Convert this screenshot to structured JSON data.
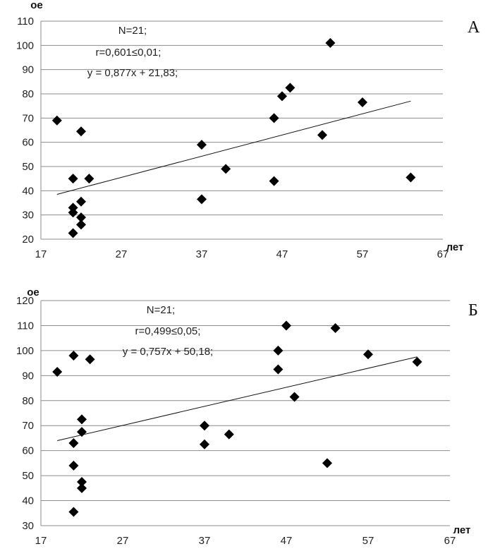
{
  "chart_data": [
    {
      "type": "scatter",
      "panel_label": "А",
      "ylabel": "ое",
      "xlabel": "лет",
      "xlim": [
        17,
        67
      ],
      "ylim": [
        20,
        110
      ],
      "xticks": [
        17,
        27,
        37,
        47,
        57,
        67
      ],
      "yticks": [
        20,
        30,
        40,
        50,
        60,
        70,
        80,
        90,
        100,
        110
      ],
      "grid": "horizontal",
      "annotations": [
        "N=21;",
        "r=0,601≤0,01;",
        "y = 0,877x + 21,83;"
      ],
      "trendline": {
        "x": [
          19,
          63
        ],
        "y": [
          38.5,
          77
        ]
      },
      "points": [
        {
          "x": 19,
          "y": 69
        },
        {
          "x": 21,
          "y": 45
        },
        {
          "x": 21,
          "y": 33
        },
        {
          "x": 21,
          "y": 31
        },
        {
          "x": 21,
          "y": 22.5
        },
        {
          "x": 22,
          "y": 64.5
        },
        {
          "x": 22,
          "y": 35.5
        },
        {
          "x": 22,
          "y": 29
        },
        {
          "x": 22,
          "y": 26
        },
        {
          "x": 23,
          "y": 45
        },
        {
          "x": 37,
          "y": 59
        },
        {
          "x": 37,
          "y": 36.5
        },
        {
          "x": 40,
          "y": 49
        },
        {
          "x": 46,
          "y": 70
        },
        {
          "x": 46,
          "y": 44
        },
        {
          "x": 47,
          "y": 79
        },
        {
          "x": 48,
          "y": 82.5
        },
        {
          "x": 52,
          "y": 63
        },
        {
          "x": 53,
          "y": 101
        },
        {
          "x": 57,
          "y": 76.5
        },
        {
          "x": 63,
          "y": 45.5
        }
      ]
    },
    {
      "type": "scatter",
      "panel_label": "Б",
      "ylabel": "ое",
      "xlabel": "лет",
      "xlim": [
        17,
        67
      ],
      "ylim": [
        30,
        120
      ],
      "xticks": [
        17,
        27,
        37,
        47,
        57,
        67
      ],
      "yticks": [
        30,
        40,
        50,
        60,
        70,
        80,
        90,
        100,
        110,
        120
      ],
      "grid": "horizontal",
      "annotations": [
        "N=21;",
        "r=0,499≤0,05;",
        "y = 0,757x + 50,18;"
      ],
      "trendline": {
        "x": [
          19,
          63
        ],
        "y": [
          64,
          97.5
        ]
      },
      "points": [
        {
          "x": 19,
          "y": 91.5
        },
        {
          "x": 21,
          "y": 98
        },
        {
          "x": 21,
          "y": 63
        },
        {
          "x": 21,
          "y": 54
        },
        {
          "x": 21,
          "y": 35.5
        },
        {
          "x": 22,
          "y": 72.5
        },
        {
          "x": 22,
          "y": 67.5
        },
        {
          "x": 22,
          "y": 47.5
        },
        {
          "x": 22,
          "y": 45
        },
        {
          "x": 23,
          "y": 96.5
        },
        {
          "x": 37,
          "y": 70
        },
        {
          "x": 37,
          "y": 62.5
        },
        {
          "x": 40,
          "y": 66.5
        },
        {
          "x": 46,
          "y": 100
        },
        {
          "x": 46,
          "y": 92.5
        },
        {
          "x": 47,
          "y": 110
        },
        {
          "x": 48,
          "y": 81.5
        },
        {
          "x": 52,
          "y": 55
        },
        {
          "x": 53,
          "y": 109
        },
        {
          "x": 57,
          "y": 98.5
        },
        {
          "x": 63,
          "y": 95.5
        }
      ]
    }
  ]
}
